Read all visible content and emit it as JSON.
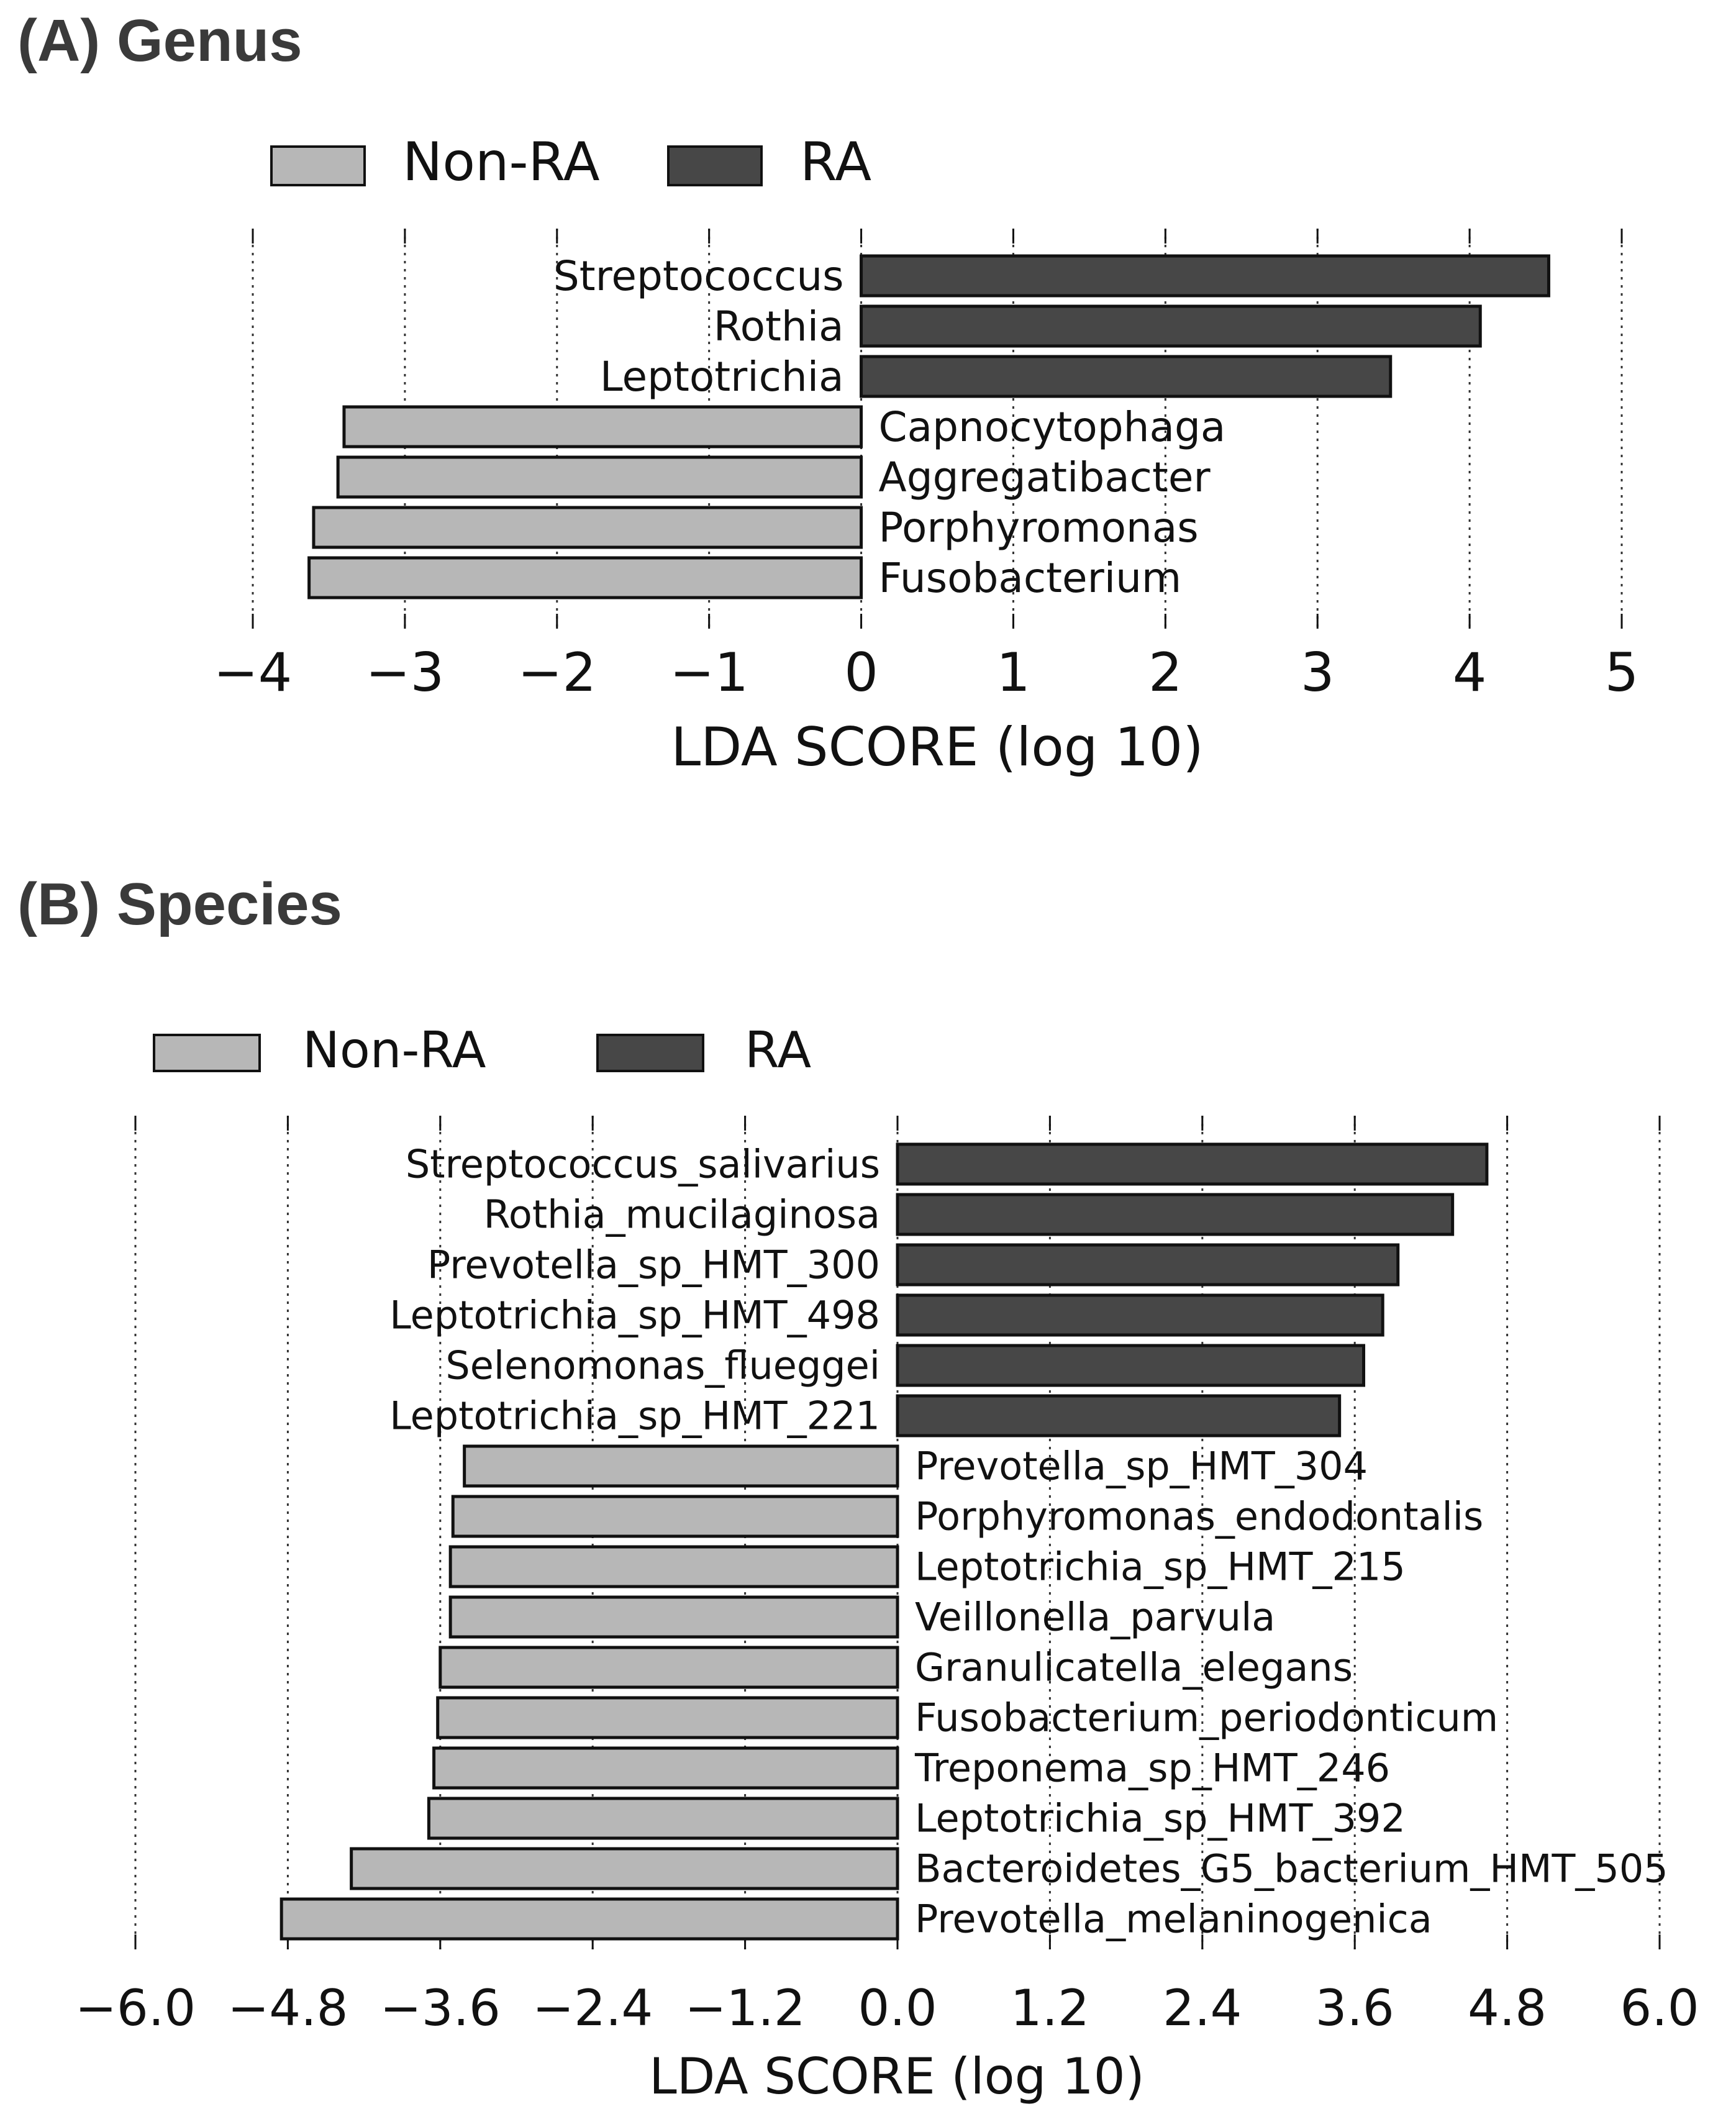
{
  "colors": {
    "non_ra": "#b7b7b7",
    "ra": "#474747",
    "edge": "#111111",
    "grid": "#333333"
  },
  "chart_data": [
    {
      "type": "bar",
      "orientation": "horizontal",
      "title": "(A) Genus",
      "legend": [
        {
          "name": "Non-RA",
          "color_key": "non_ra"
        },
        {
          "name": "RA",
          "color_key": "ra"
        }
      ],
      "legend_position": "top-left",
      "xlabel": "LDA SCORE (log 10)",
      "xlim": [
        -4,
        5
      ],
      "xticks": [
        -4,
        -3,
        -2,
        -1,
        0,
        1,
        2,
        3,
        4,
        5
      ],
      "xtick_labels": [
        "−4",
        "−3",
        "−2",
        "−1",
        "0",
        "1",
        "2",
        "3",
        "4",
        "5"
      ],
      "grid": "vertical dotted",
      "categories": [
        "Streptococcus",
        "Rothia",
        "Leptotrichia",
        "Capnocytophaga",
        "Aggregatibacter",
        "Porphyromonas",
        "Fusobacterium"
      ],
      "values": [
        4.52,
        4.07,
        3.48,
        -3.4,
        -3.44,
        -3.6,
        -3.63
      ],
      "groups": [
        "RA",
        "RA",
        "RA",
        "Non-RA",
        "Non-RA",
        "Non-RA",
        "Non-RA"
      ]
    },
    {
      "type": "bar",
      "orientation": "horizontal",
      "title": "(B) Species",
      "legend": [
        {
          "name": "Non-RA",
          "color_key": "non_ra"
        },
        {
          "name": "RA",
          "color_key": "ra"
        }
      ],
      "legend_position": "top-left",
      "xlabel": "LDA SCORE (log 10)",
      "xlim": [
        -6,
        6
      ],
      "xticks": [
        -6,
        -4.8,
        -3.6,
        -2.4,
        -1.2,
        0,
        1.2,
        2.4,
        3.6,
        4.8,
        6
      ],
      "xtick_labels": [
        "−6.0",
        "−4.8",
        "−3.6",
        "−2.4",
        "−1.2",
        "0.0",
        "1.2",
        "2.4",
        "3.6",
        "4.8",
        "6.0"
      ],
      "grid": "vertical dotted",
      "categories": [
        "Streptococcus_salivarius",
        "Rothia_mucilaginosa",
        "Prevotella_sp_HMT_300",
        "Leptotrichia_sp_HMT_498",
        "Selenomonas_flueggei",
        "Leptotrichia_sp_HMT_221",
        "Prevotella_sp_HMT_304",
        "Porphyromonas_endodontalis",
        "Leptotrichia_sp_HMT_215",
        "Veillonella_parvula",
        "Granulicatella_elegans",
        "Fusobacterium_periodonticum",
        "Treponema_sp_HMT_246",
        "Leptotrichia_sp_HMT_392",
        "Bacteroidetes_G5_bacterium_HMT_505",
        "Prevotella_melaninogenica"
      ],
      "values": [
        4.64,
        4.37,
        3.94,
        3.82,
        3.67,
        3.48,
        -3.41,
        -3.5,
        -3.52,
        -3.52,
        -3.6,
        -3.62,
        -3.65,
        -3.69,
        -4.3,
        -4.85
      ],
      "groups": [
        "RA",
        "RA",
        "RA",
        "RA",
        "RA",
        "RA",
        "Non-RA",
        "Non-RA",
        "Non-RA",
        "Non-RA",
        "Non-RA",
        "Non-RA",
        "Non-RA",
        "Non-RA",
        "Non-RA",
        "Non-RA"
      ]
    }
  ]
}
